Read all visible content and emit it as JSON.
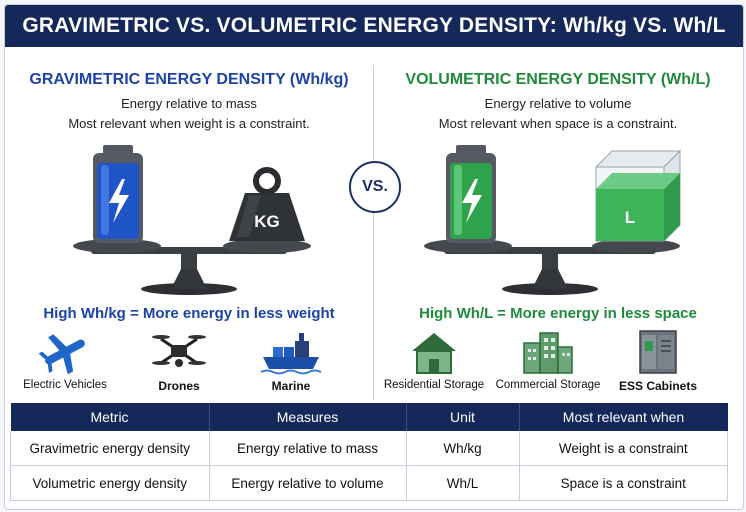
{
  "title": "GRAVIMETRIC VS. VOLUMETRIC ENERGY DENSITY: Wh/kg VS. Wh/L",
  "vs_label": "VS.",
  "left": {
    "heading": "GRAVIMETRIC ENERGY DENSITY (Wh/kg)",
    "line1": "Energy relative to mass",
    "line2": "Most relevant when weight is a constraint.",
    "weight_label": "KG",
    "tagline": "High Wh/kg = More energy in less weight",
    "apps": [
      {
        "icon": "airplane-icon",
        "label": "Electric Vehicles"
      },
      {
        "icon": "drone-icon",
        "label": "Drones"
      },
      {
        "icon": "ship-icon",
        "label": "Marine"
      }
    ],
    "accent": "#1c44a6"
  },
  "right": {
    "heading": "VOLUMETRIC ENERGY DENSITY (Wh/L)",
    "line1": "Energy relative to volume",
    "line2": "Most relevant when space is a constraint.",
    "volume_label": "L",
    "tagline": "High Wh/L = More energy in less space",
    "apps": [
      {
        "icon": "house-icon",
        "label": "Residential Storage"
      },
      {
        "icon": "building-icon",
        "label": "Commercial Storage"
      },
      {
        "icon": "cabinet-icon",
        "label": "ESS Cabinets"
      }
    ],
    "accent": "#1e8a3a"
  },
  "table": {
    "headers": [
      "Metric",
      "Measures",
      "Unit",
      "Most relevant when"
    ],
    "rows": [
      [
        "Gravimetric energy density",
        "Energy relative to mass",
        "Wh/kg",
        "Weight is a constraint"
      ],
      [
        "Volumetric energy density",
        "Energy relative to volume",
        "Wh/L",
        "Space is a constraint"
      ]
    ]
  }
}
